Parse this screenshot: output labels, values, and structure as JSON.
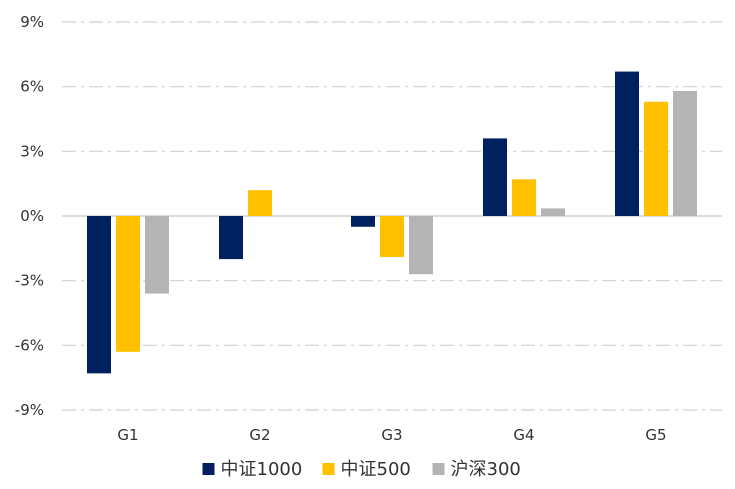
{
  "chart_data": {
    "type": "bar",
    "title": "",
    "xlabel": "",
    "ylabel": "",
    "categories": [
      "G1",
      "G2",
      "G3",
      "G4",
      "G5"
    ],
    "series": [
      {
        "name": "中证1000",
        "color": "#002060",
        "values": [
          -7.3,
          -2.0,
          -0.5,
          3.6,
          6.7
        ]
      },
      {
        "name": "中证500",
        "color": "#FFC000",
        "values": [
          -6.3,
          1.2,
          -1.9,
          1.7,
          5.3
        ]
      },
      {
        "name": "沪深300",
        "color": "#B4B4B4",
        "values": [
          -3.6,
          0.0,
          -2.7,
          0.35,
          5.8
        ]
      }
    ],
    "ylim": [
      -9,
      9
    ],
    "yticks": [
      9,
      6,
      3,
      0,
      -3,
      -6,
      -9
    ],
    "ytick_labels": [
      "9%",
      "6%",
      "3%",
      "0%",
      "-3%",
      "-6%",
      "-9%"
    ],
    "grid": true,
    "legend_position": "bottom"
  }
}
